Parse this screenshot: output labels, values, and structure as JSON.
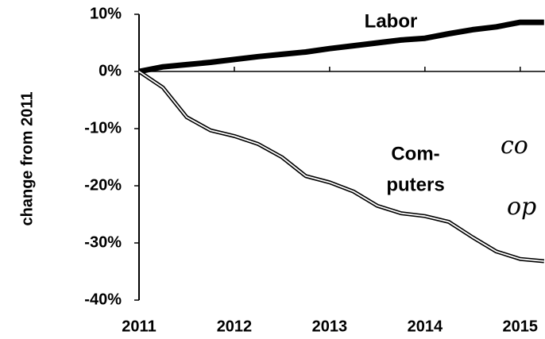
{
  "chart_data": {
    "type": "line",
    "ylabel": "change from 2011",
    "x": [
      2011,
      2011.25,
      2011.5,
      2011.75,
      2012,
      2012.25,
      2012.5,
      2012.75,
      2013,
      2013.25,
      2013.5,
      2013.75,
      2014,
      2014.25,
      2014.5,
      2014.75,
      2015,
      2015.25
    ],
    "series": [
      {
        "name": "Labor",
        "color": "#000000",
        "line_style": "solid",
        "values": [
          0,
          0.8,
          1.2,
          1.6,
          2.1,
          2.6,
          3.0,
          3.4,
          4.0,
          4.5,
          5.0,
          5.5,
          5.8,
          6.6,
          7.3,
          7.8,
          8.6,
          8.6
        ]
      },
      {
        "name": "Computers",
        "color": "#000000",
        "line_style": "double",
        "values": [
          0,
          -2.8,
          -8.0,
          -10.3,
          -11.3,
          -12.7,
          -15.0,
          -18.3,
          -19.4,
          -21.0,
          -23.5,
          -24.8,
          -25.3,
          -26.3,
          -29.0,
          -31.5,
          -32.8,
          -33.2
        ]
      }
    ],
    "annotations": [
      "Labor",
      "Com-",
      "puters",
      "co",
      "op"
    ],
    "xlim": [
      2011,
      2015.26
    ],
    "xticks": [
      2011,
      2012,
      2013,
      2014,
      2015
    ],
    "ylim": [
      -40,
      10
    ],
    "yticks": [
      {
        "value": -40,
        "label": "-40%"
      },
      {
        "value": -30,
        "label": "-30%"
      },
      {
        "value": -20,
        "label": "-20%"
      },
      {
        "value": -10,
        "label": "-10%"
      },
      {
        "value": 0,
        "label": "0%"
      },
      {
        "value": 10,
        "label": "10%"
      }
    ],
    "grid": false
  }
}
